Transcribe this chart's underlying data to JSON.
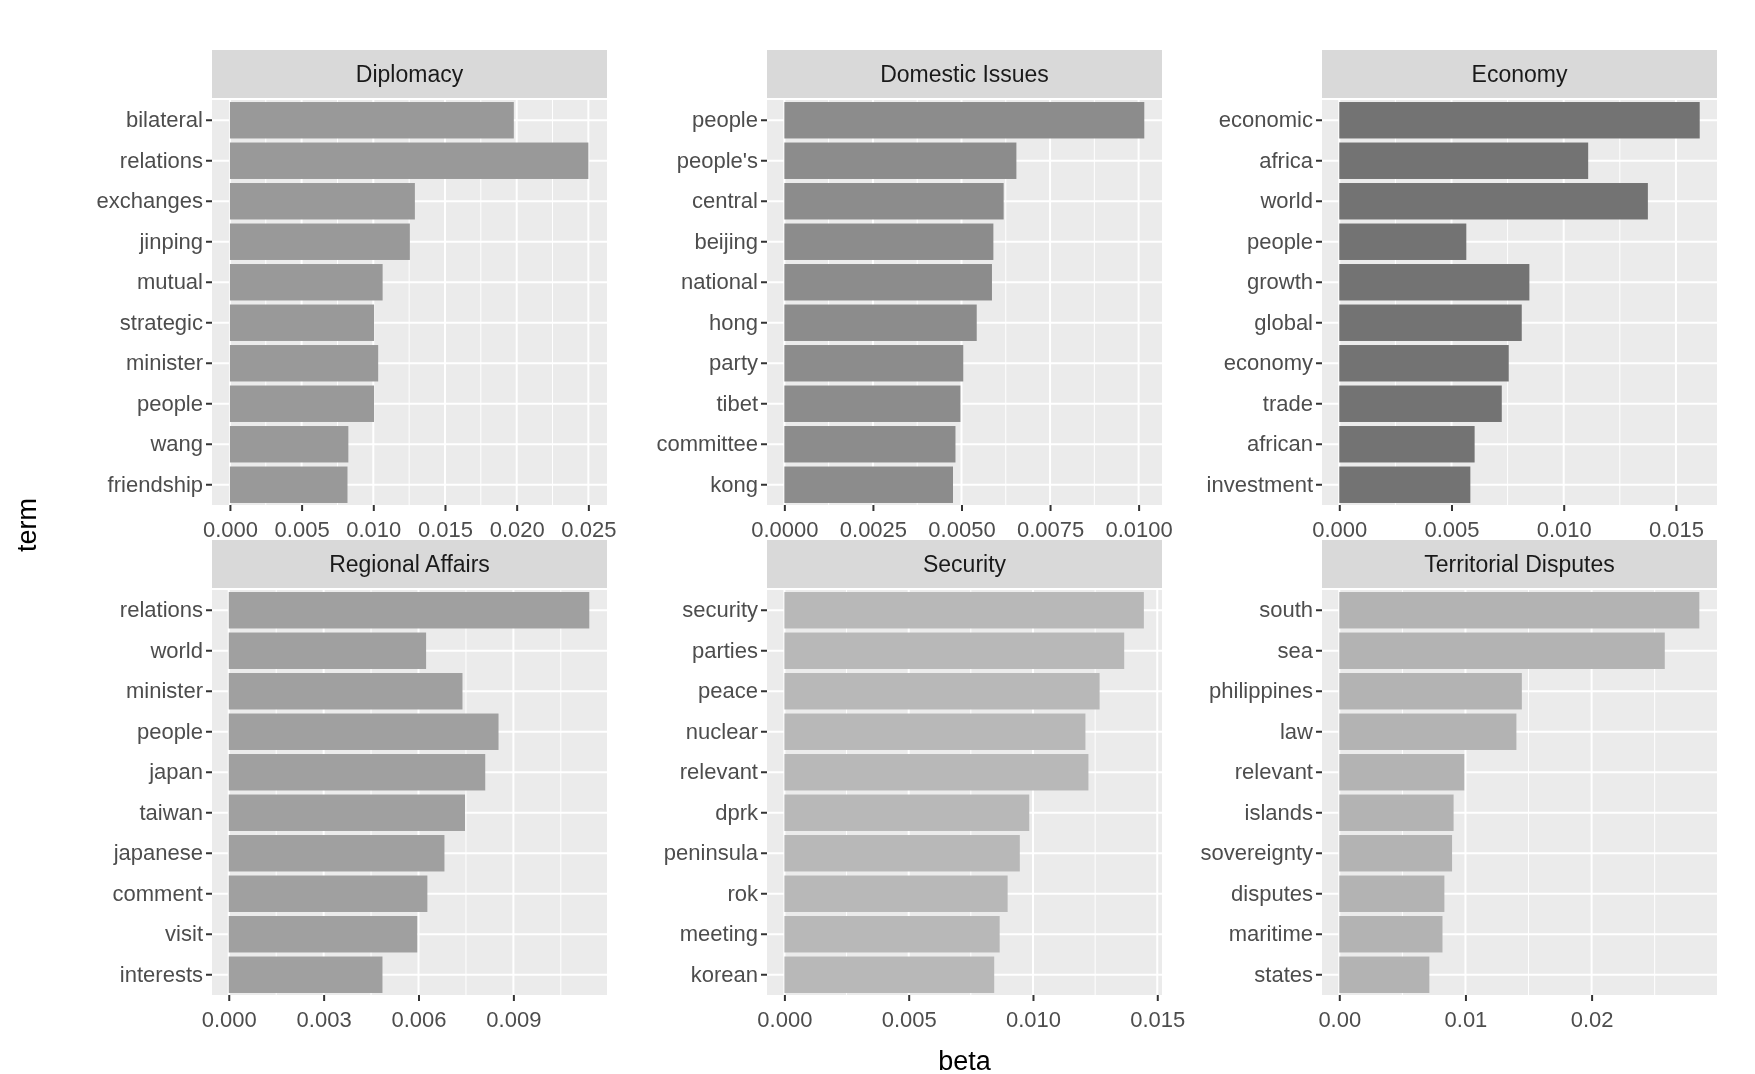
{
  "chart_data": [
    {
      "type": "bar",
      "orientation": "horizontal",
      "title": "Diplomacy",
      "grid": true,
      "color": "#999999",
      "categories": [
        "bilateral",
        "relations",
        "exchanges",
        "jinping",
        "mutual",
        "strategic",
        "minister",
        "people",
        "wang",
        "friendship"
      ],
      "values": [
        0.0198,
        0.025,
        0.0129,
        0.01255,
        0.01065,
        0.01005,
        0.01034,
        0.01005,
        0.00826,
        0.0082
      ],
      "xlim": [
        -0.00125,
        0.0263
      ],
      "xticks": [
        {
          "value": 0,
          "label": "0.000"
        },
        {
          "value": 0.005,
          "label": "0.005"
        },
        {
          "value": 0.01,
          "label": "0.010"
        },
        {
          "value": 0.015,
          "label": "0.015"
        },
        {
          "value": 0.02,
          "label": "0.020"
        },
        {
          "value": 0.025,
          "label": "0.025"
        }
      ]
    },
    {
      "type": "bar",
      "orientation": "horizontal",
      "title": "Domestic Issues",
      "grid": true,
      "color": "#8c8c8c",
      "categories": [
        "people",
        "people's",
        "central",
        "beijing",
        "national",
        "hong",
        "party",
        "tibet",
        "committee",
        "kong"
      ],
      "values": [
        0.01016,
        0.00655,
        0.00619,
        0.0059,
        0.00586,
        0.00543,
        0.00505,
        0.00497,
        0.00483,
        0.00476
      ],
      "xlim": [
        -0.00049,
        0.01066
      ],
      "xticks": [
        {
          "value": 0,
          "label": "0.0000"
        },
        {
          "value": 0.0025,
          "label": "0.0025"
        },
        {
          "value": 0.005,
          "label": "0.0050"
        },
        {
          "value": 0.0075,
          "label": "0.0075"
        },
        {
          "value": 0.01,
          "label": "0.0100"
        }
      ]
    },
    {
      "type": "bar",
      "orientation": "horizontal",
      "title": "Economy",
      "grid": true,
      "color": "#737373",
      "categories": [
        "economic",
        "africa",
        "world",
        "people",
        "growth",
        "global",
        "economy",
        "trade",
        "african",
        "investment"
      ],
      "values": [
        0.01606,
        0.01109,
        0.01375,
        0.00566,
        0.00847,
        0.00813,
        0.00755,
        0.00724,
        0.00603,
        0.00584
      ],
      "xlim": [
        -0.00077,
        0.01683
      ],
      "xticks": [
        {
          "value": 0,
          "label": "0.000"
        },
        {
          "value": 0.005,
          "label": "0.005"
        },
        {
          "value": 0.01,
          "label": "0.010"
        },
        {
          "value": 0.015,
          "label": "0.015"
        }
      ]
    },
    {
      "type": "bar",
      "orientation": "horizontal",
      "title": "Regional Affairs",
      "ylabel": "term",
      "grid": true,
      "color": "#a0a0a0",
      "categories": [
        "relations",
        "world",
        "minister",
        "people",
        "japan",
        "taiwan",
        "japanese",
        "comment",
        "visit",
        "interests"
      ],
      "values": [
        0.0114,
        0.00624,
        0.00739,
        0.00853,
        0.00811,
        0.00747,
        0.00682,
        0.00628,
        0.00596,
        0.00486
      ],
      "xlim": [
        -0.00053,
        0.01196
      ],
      "xticks": [
        {
          "value": 0,
          "label": "0.000"
        },
        {
          "value": 0.003,
          "label": "0.003"
        },
        {
          "value": 0.006,
          "label": "0.006"
        },
        {
          "value": 0.009,
          "label": "0.009"
        }
      ]
    },
    {
      "type": "bar",
      "orientation": "horizontal",
      "title": "Security",
      "xlabel": "beta",
      "grid": true,
      "color": "#b8b8b8",
      "categories": [
        "security",
        "parties",
        "peace",
        "nuclear",
        "relevant",
        "dprk",
        "peninsula",
        "rok",
        "meeting",
        "korean"
      ],
      "values": [
        0.01446,
        0.01367,
        0.01268,
        0.01211,
        0.01223,
        0.00985,
        0.00947,
        0.00898,
        0.00866,
        0.00844
      ],
      "xlim": [
        -0.0007,
        0.01519
      ],
      "xticks": [
        {
          "value": 0,
          "label": "0.000"
        },
        {
          "value": 0.005,
          "label": "0.005"
        },
        {
          "value": 0.01,
          "label": "0.010"
        },
        {
          "value": 0.015,
          "label": "0.015"
        }
      ]
    },
    {
      "type": "bar",
      "orientation": "horizontal",
      "title": "Territorial Disputes",
      "grid": true,
      "color": "#b3b3b3",
      "categories": [
        "south",
        "sea",
        "philippines",
        "law",
        "relevant",
        "islands",
        "sovereignty",
        "disputes",
        "maritime",
        "states"
      ],
      "values": [
        0.02854,
        0.0258,
        0.01447,
        0.01404,
        0.00991,
        0.00906,
        0.00894,
        0.00833,
        0.00818,
        0.00714
      ],
      "xlim": [
        -0.00137,
        0.02994
      ],
      "xticks": [
        {
          "value": 0,
          "label": "0.00"
        },
        {
          "value": 0.01,
          "label": "0.01"
        },
        {
          "value": 0.02,
          "label": "0.02"
        }
      ]
    }
  ]
}
